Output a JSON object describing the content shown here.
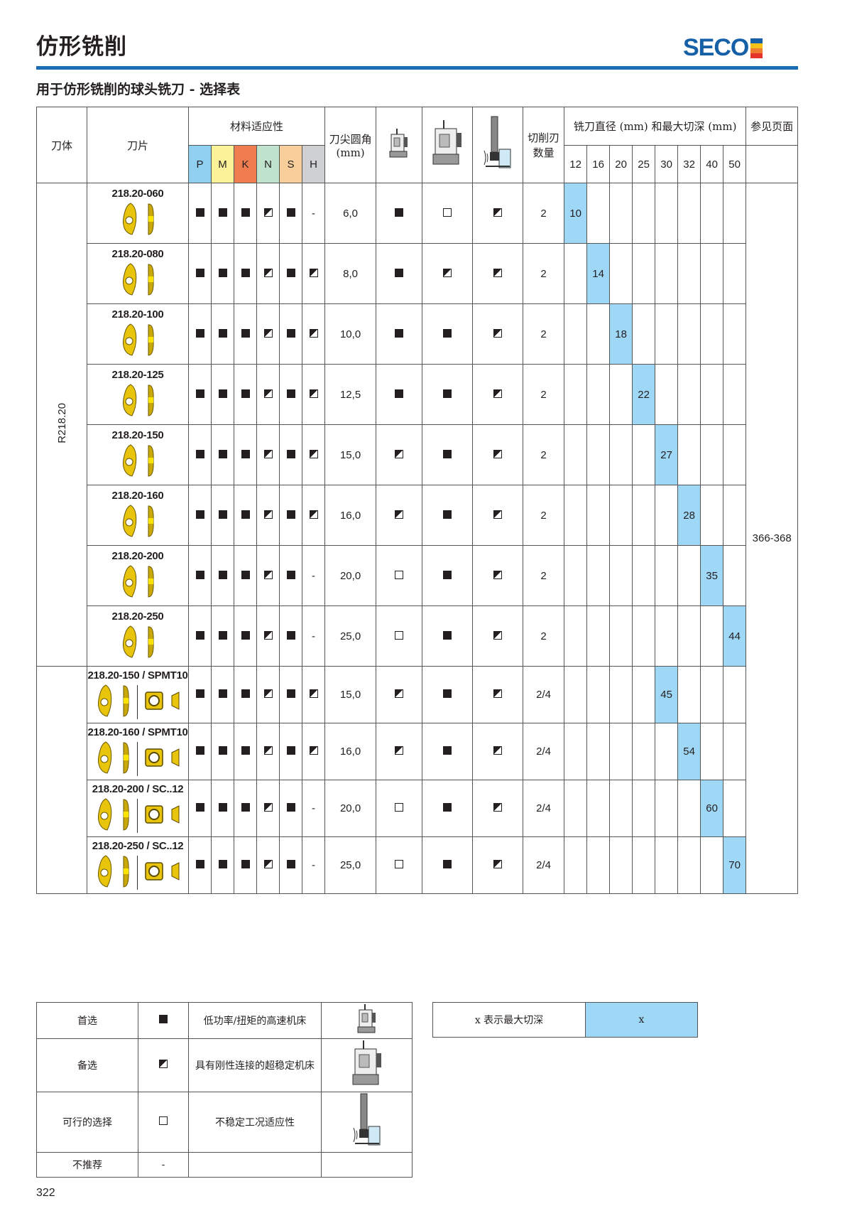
{
  "header": {
    "title": "仿形铣削",
    "logo": "SECO",
    "logo_colors": [
      "#1660a8",
      "#f6c21a",
      "#ef7d30",
      "#e5352b"
    ],
    "accent": "#1a6db3"
  },
  "subtitle": "用于仿形铣削的球头铣刀 - 选择表",
  "table": {
    "col_body": "刀体",
    "col_insert": "刀片",
    "col_material": "材料适应性",
    "materials": [
      {
        "label": "P",
        "color": "#8fd0f0"
      },
      {
        "label": "M",
        "color": "#fbf29a"
      },
      {
        "label": "K",
        "color": "#ef7d4f"
      },
      {
        "label": "N",
        "color": "#bfe3cc"
      },
      {
        "label": "S",
        "color": "#f8cf9a"
      },
      {
        "label": "H",
        "color": "#cfd0d2"
      }
    ],
    "col_radius": "刀尖圆角 (mm)",
    "machine_icons": [
      "small-high-speed-machine-icon",
      "large-stable-machine-icon",
      "unstable-condition-icon"
    ],
    "col_edges": "切削刃数量",
    "col_diameter": "铣刀直径 (mm) 和最大切深 (mm)",
    "diameters": [
      "12",
      "16",
      "20",
      "25",
      "30",
      "32",
      "40",
      "50"
    ],
    "col_ref": "参见页面",
    "body_label": "R218.20",
    "ref_pages": "366-368",
    "highlight_color": "#9fd8f6",
    "rows": [
      {
        "code": "218.20-060",
        "mat": [
          "f",
          "f",
          "f",
          "h",
          "f",
          "-"
        ],
        "radius": "6,0",
        "machines": [
          "f",
          "o",
          "h"
        ],
        "edges": "2",
        "dia": "12",
        "depth": "10",
        "extra": false
      },
      {
        "code": "218.20-080",
        "mat": [
          "f",
          "f",
          "f",
          "h",
          "f",
          "h"
        ],
        "radius": "8,0",
        "machines": [
          "f",
          "h",
          "h"
        ],
        "edges": "2",
        "dia": "16",
        "depth": "14",
        "extra": false
      },
      {
        "code": "218.20-100",
        "mat": [
          "f",
          "f",
          "f",
          "h",
          "f",
          "h"
        ],
        "radius": "10,0",
        "machines": [
          "f",
          "f",
          "h"
        ],
        "edges": "2",
        "dia": "20",
        "depth": "18",
        "extra": false
      },
      {
        "code": "218.20-125",
        "mat": [
          "f",
          "f",
          "f",
          "h",
          "f",
          "h"
        ],
        "radius": "12,5",
        "machines": [
          "f",
          "f",
          "h"
        ],
        "edges": "2",
        "dia": "25",
        "depth": "22",
        "extra": false
      },
      {
        "code": "218.20-150",
        "mat": [
          "f",
          "f",
          "f",
          "h",
          "f",
          "h"
        ],
        "radius": "15,0",
        "machines": [
          "h",
          "f",
          "h"
        ],
        "edges": "2",
        "dia": "30",
        "depth": "27",
        "extra": false
      },
      {
        "code": "218.20-160",
        "mat": [
          "f",
          "f",
          "f",
          "h",
          "f",
          "h"
        ],
        "radius": "16,0",
        "machines": [
          "h",
          "f",
          "h"
        ],
        "edges": "2",
        "dia": "32",
        "depth": "28",
        "extra": false
      },
      {
        "code": "218.20-200",
        "mat": [
          "f",
          "f",
          "f",
          "h",
          "f",
          "-"
        ],
        "radius": "20,0",
        "machines": [
          "o",
          "f",
          "h"
        ],
        "edges": "2",
        "dia": "40",
        "depth": "35",
        "extra": false
      },
      {
        "code": "218.20-250",
        "mat": [
          "f",
          "f",
          "f",
          "h",
          "f",
          "-"
        ],
        "radius": "25,0",
        "machines": [
          "o",
          "f",
          "h"
        ],
        "edges": "2",
        "dia": "50",
        "depth": "44",
        "extra": false
      },
      {
        "code": "218.20-150 / SPMT10",
        "mat": [
          "f",
          "f",
          "f",
          "h",
          "f",
          "h"
        ],
        "radius": "15,0",
        "machines": [
          "h",
          "f",
          "h"
        ],
        "edges": "2/4",
        "dia": "30",
        "depth": "45",
        "extra": true
      },
      {
        "code": "218.20-160 / SPMT10",
        "mat": [
          "f",
          "f",
          "f",
          "h",
          "f",
          "h"
        ],
        "radius": "16,0",
        "machines": [
          "h",
          "f",
          "h"
        ],
        "edges": "2/4",
        "dia": "32",
        "depth": "54",
        "extra": true
      },
      {
        "code": "218.20-200 / SC..12",
        "mat": [
          "f",
          "f",
          "f",
          "h",
          "f",
          "-"
        ],
        "radius": "20,0",
        "machines": [
          "o",
          "f",
          "h"
        ],
        "edges": "2/4",
        "dia": "40",
        "depth": "60",
        "extra": true
      },
      {
        "code": "218.20-250 / SC..12",
        "mat": [
          "f",
          "f",
          "f",
          "h",
          "f",
          "-"
        ],
        "radius": "25,0",
        "machines": [
          "o",
          "f",
          "h"
        ],
        "edges": "2/4",
        "dia": "50",
        "depth": "70",
        "extra": true
      }
    ]
  },
  "legend": {
    "rows": [
      {
        "label": "首选",
        "symbol": "f",
        "desc": "低功率/扭矩的高速机床",
        "icon": "small-high-speed-machine-icon"
      },
      {
        "label": "备选",
        "symbol": "h",
        "desc": "具有刚性连接的超稳定机床",
        "icon": "large-stable-machine-icon"
      },
      {
        "label": "可行的选择",
        "symbol": "o",
        "desc": "不稳定工况适应性",
        "icon": "unstable-condition-icon"
      },
      {
        "label": "不推荐",
        "symbol": "-",
        "desc": "",
        "icon": ""
      }
    ],
    "depth_note": "x 表示最大切深",
    "depth_value": "x"
  },
  "page_number": "322"
}
